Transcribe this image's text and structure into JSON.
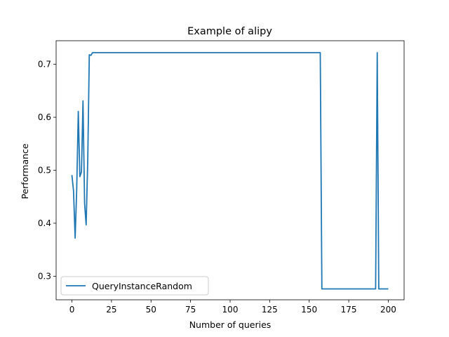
{
  "chart_data": {
    "type": "line",
    "title": "Example of alipy",
    "xlabel": "Number of queries",
    "ylabel": "Performance",
    "xlim": [
      -10,
      210
    ],
    "ylim": [
      0.2555,
      0.7445
    ],
    "xticks": [
      0,
      25,
      50,
      75,
      100,
      125,
      150,
      175,
      200
    ],
    "yticks": [
      0.3,
      0.4,
      0.5,
      0.6,
      0.7
    ],
    "ytick_labels": [
      "0.3",
      "0.4",
      "0.5",
      "0.6",
      "0.7"
    ],
    "grid": false,
    "legend_position": "lower-left",
    "series": [
      {
        "name": "QueryInstanceRandom",
        "color": "#1f77b4",
        "x": [
          0,
          1,
          2,
          3,
          4,
          5,
          6,
          7,
          8,
          9,
          10,
          11,
          12,
          13,
          14,
          15,
          157,
          158,
          192,
          193,
          194,
          200
        ],
        "y": [
          0.491,
          0.461,
          0.372,
          0.462,
          0.611,
          0.488,
          0.497,
          0.631,
          0.437,
          0.397,
          0.52,
          0.718,
          0.717,
          0.722,
          0.722,
          0.722,
          0.722,
          0.276,
          0.276,
          0.722,
          0.276,
          0.276
        ]
      }
    ]
  }
}
